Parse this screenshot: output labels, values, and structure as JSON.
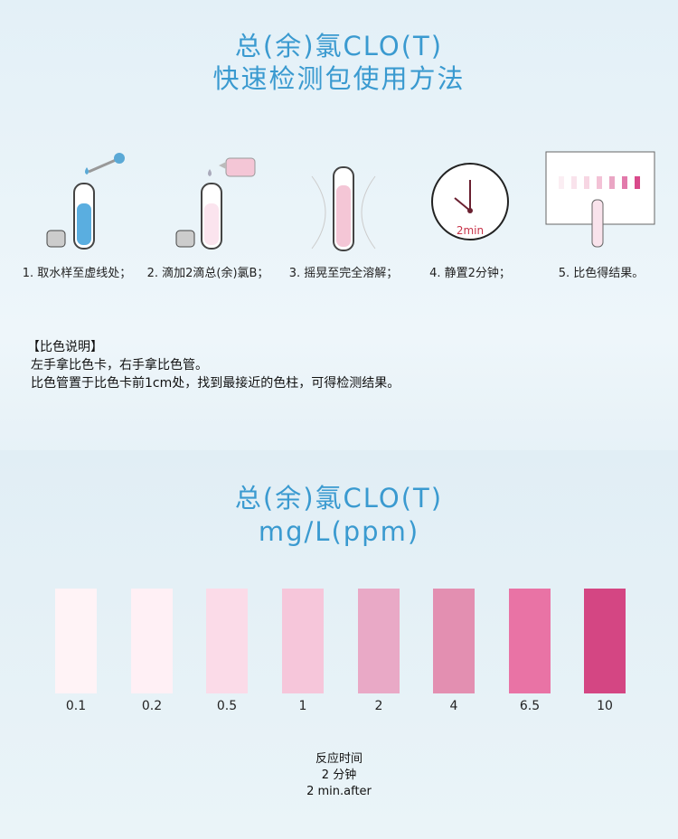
{
  "title1": {
    "line1": "总(余)氯CLO(T)",
    "line2": "快速检测包使用方法"
  },
  "steps": [
    {
      "label": "1. 取水样至虚线处；",
      "icon": "test-tube-dropper-icon"
    },
    {
      "label": "2. 滴加2滴总(余)氯B；",
      "icon": "reagent-bottle-icon"
    },
    {
      "label": "3. 摇晃至完全溶解；",
      "icon": "shake-tube-icon"
    },
    {
      "label": "4. 静置2分钟；",
      "icon": "clock-icon",
      "clock_text": "2min"
    },
    {
      "label": "5. 比色得结果。",
      "icon": "color-card-icon"
    }
  ],
  "note": {
    "heading": "【比色说明】",
    "lines": [
      "左手拿比色卡，右手拿比色管。",
      "比色管置于比色卡前1cm处，找到最接近的色柱，可得检测结果。"
    ]
  },
  "title2": {
    "line1": "总(余)氯CLO(T)",
    "line2": "mg/L(ppm)"
  },
  "swatches": [
    {
      "value": "0.1",
      "color": "#fff3f6"
    },
    {
      "value": "0.2",
      "color": "#fff0f5"
    },
    {
      "value": "0.5",
      "color": "#fbdbe8"
    },
    {
      "value": "1",
      "color": "#f6c6da"
    },
    {
      "value": "2",
      "color": "#e9a9c6"
    },
    {
      "value": "4",
      "color": "#e38fb1"
    },
    {
      "value": "6.5",
      "color": "#e973a5"
    },
    {
      "value": "10",
      "color": "#d44683"
    }
  ],
  "footer": {
    "line1": "反应时间",
    "line2": "2  分钟",
    "line3": "2  min.after"
  }
}
